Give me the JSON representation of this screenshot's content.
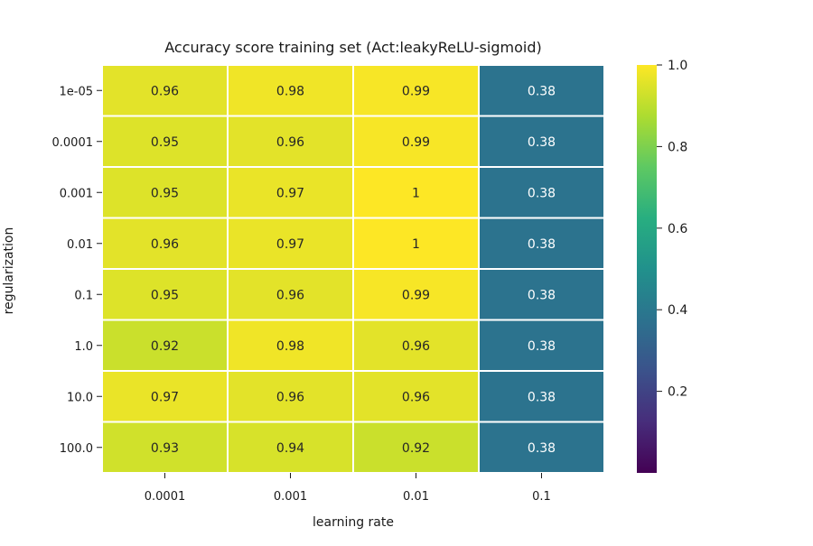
{
  "chart_data": {
    "type": "heatmap",
    "title": "Accuracy score training set (Act:leakyReLU-sigmoid)",
    "xlabel": "learning rate",
    "ylabel": "regularization",
    "x_categories": [
      "0.0001",
      "0.001",
      "0.01",
      "0.1"
    ],
    "y_categories": [
      "1e-05",
      "0.0001",
      "0.001",
      "0.01",
      "0.1",
      "1.0",
      "10.0",
      "100.0"
    ],
    "values": [
      [
        0.96,
        0.98,
        0.99,
        0.38
      ],
      [
        0.95,
        0.96,
        0.99,
        0.38
      ],
      [
        0.95,
        0.97,
        1.0,
        0.38
      ],
      [
        0.96,
        0.97,
        1.0,
        0.38
      ],
      [
        0.95,
        0.96,
        0.99,
        0.38
      ],
      [
        0.92,
        0.98,
        0.96,
        0.38
      ],
      [
        0.97,
        0.96,
        0.96,
        0.38
      ],
      [
        0.93,
        0.94,
        0.92,
        0.38
      ]
    ],
    "value_labels": [
      [
        "0.96",
        "0.98",
        "0.99",
        "0.38"
      ],
      [
        "0.95",
        "0.96",
        "0.99",
        "0.38"
      ],
      [
        "0.95",
        "0.97",
        "1",
        "0.38"
      ],
      [
        "0.96",
        "0.97",
        "1",
        "0.38"
      ],
      [
        "0.95",
        "0.96",
        "0.99",
        "0.38"
      ],
      [
        "0.92",
        "0.98",
        "0.96",
        "0.38"
      ],
      [
        "0.97",
        "0.96",
        "0.96",
        "0.38"
      ],
      [
        "0.93",
        "0.94",
        "0.92",
        "0.38"
      ]
    ],
    "colormap": "viridis",
    "vmin": 0.0,
    "vmax": 1.0,
    "colorbar_ticks": [
      "0.2",
      "0.4",
      "0.6",
      "0.8",
      "1.0"
    ],
    "grid": false,
    "colorbar_placement": "right"
  }
}
